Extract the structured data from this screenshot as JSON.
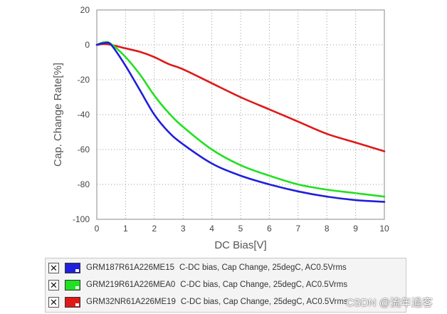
{
  "chart_data": {
    "type": "line",
    "title": "",
    "xlabel": "DC Bias[V]",
    "ylabel": "Cap. Change Rate[%]",
    "xlim": [
      0,
      10
    ],
    "ylim": [
      -100,
      20
    ],
    "xticks": [
      0,
      1,
      2,
      3,
      4,
      5,
      6,
      7,
      8,
      9,
      10
    ],
    "yticks": [
      20,
      0,
      -20,
      -40,
      -60,
      -80,
      -100
    ],
    "grid": true,
    "x": [
      0,
      0.25,
      0.5,
      1,
      1.5,
      2,
      2.5,
      3,
      4,
      5,
      6,
      7,
      8,
      9,
      10
    ],
    "series": [
      {
        "name": "GRM187R61A226ME15",
        "color": "#1f1fdc",
        "values": [
          0,
          1,
          0,
          -12,
          -26,
          -40,
          -50,
          -57,
          -68,
          -75,
          -80,
          -84,
          -87,
          -89,
          -90
        ]
      },
      {
        "name": "GRM219R61A226MEA0",
        "color": "#22e022",
        "values": [
          0,
          1.5,
          0.5,
          -7,
          -17,
          -29,
          -39,
          -47,
          -60,
          -69,
          -75,
          -80,
          -83,
          -85,
          -87
        ]
      },
      {
        "name": "GRM32NR61A226ME19",
        "color": "#e01818",
        "values": [
          0,
          0.5,
          0,
          -2,
          -4,
          -7,
          -11,
          -14,
          -22,
          -30,
          -37,
          -44,
          -51,
          -56,
          -61
        ]
      }
    ]
  },
  "legend": {
    "items": [
      {
        "check": "✕",
        "part": "GRM187R61A226ME15",
        "desc": "C-DC bias, Cap Change, 25degC, AC0.5Vrms",
        "color": "#1f1fdc"
      },
      {
        "check": "✕",
        "part": "GRM219R61A226MEA0",
        "desc": "C-DC bias, Cap Change, 25degC, AC0.5Vrms",
        "color": "#22e022"
      },
      {
        "check": "✕",
        "part": "GRM32NR61A226ME19",
        "desc": "C-DC bias, Cap Change, 25degC, AC0.5Vrms",
        "color": "#e01818"
      }
    ]
  },
  "watermark": "CSDN @流年過客"
}
